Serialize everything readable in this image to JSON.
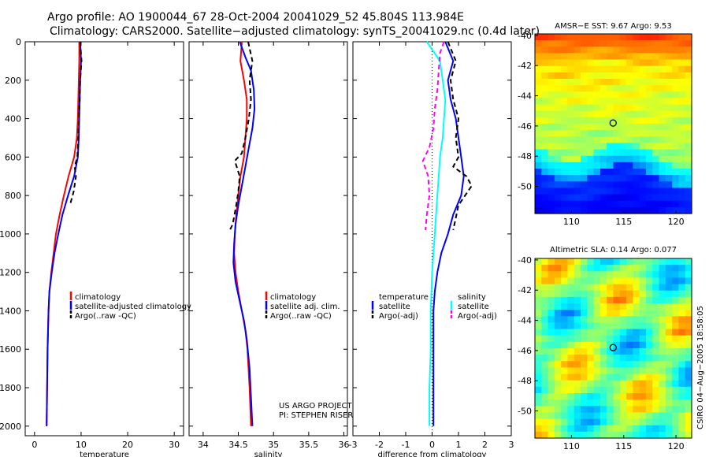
{
  "header": {
    "line1": "Argo profile: AO 1900044_67 28-Oct-2004 20041029_52 45.804S 113.984E",
    "line2": "Climatology: CARS2000. Satellite−adjusted climatology: synTS_20041029.nc (0.4d later)"
  },
  "colors": {
    "clim": "#ff0000",
    "sat": "#0000ff",
    "argo": "#000000",
    "cyan": "#00ffff",
    "magenta": "#ff00ff"
  },
  "chart_data": [
    {
      "type": "line",
      "id": "temperature",
      "xlabel": "temperature",
      "ylabel": "",
      "xlim": [
        -2,
        32
      ],
      "ylim": [
        2050,
        0
      ],
      "xticks": [
        0,
        10,
        20,
        30
      ],
      "yticks": [
        0,
        200,
        400,
        600,
        800,
        1000,
        1200,
        1400,
        1600,
        1800,
        2000
      ],
      "series": [
        {
          "name": "climatology",
          "color": "#ff0000",
          "dash": "",
          "points": [
            [
              9.6,
              0
            ],
            [
              9.6,
              100
            ],
            [
              9.5,
              200
            ],
            [
              9.4,
              300
            ],
            [
              9.3,
              400
            ],
            [
              9.1,
              500
            ],
            [
              8.5,
              600
            ],
            [
              7.3,
              700
            ],
            [
              6.3,
              800
            ],
            [
              5.4,
              900
            ],
            [
              4.6,
              1000
            ],
            [
              4.1,
              1100
            ],
            [
              3.6,
              1200
            ],
            [
              3.2,
              1300
            ],
            [
              3.0,
              1400
            ],
            [
              2.9,
              1500
            ],
            [
              2.8,
              1600
            ],
            [
              2.7,
              1800
            ],
            [
              2.6,
              2000
            ]
          ]
        },
        {
          "name": "satellite-adjusted climatology",
          "color": "#0000ff",
          "dash": "",
          "points": [
            [
              9.8,
              0
            ],
            [
              10.0,
              100
            ],
            [
              9.8,
              200
            ],
            [
              9.7,
              300
            ],
            [
              9.6,
              400
            ],
            [
              9.5,
              500
            ],
            [
              9.3,
              600
            ],
            [
              8.5,
              700
            ],
            [
              7.2,
              800
            ],
            [
              6.0,
              900
            ],
            [
              5.1,
              1000
            ],
            [
              4.3,
              1100
            ],
            [
              3.7,
              1200
            ],
            [
              3.2,
              1300
            ],
            [
              3.0,
              1400
            ],
            [
              2.9,
              1500
            ],
            [
              2.8,
              1600
            ],
            [
              2.7,
              1800
            ],
            [
              2.6,
              2000
            ]
          ]
        },
        {
          "name": "Argo(..raw -QC)",
          "color": "#000000",
          "dash": "6,4",
          "points": [
            [
              9.8,
              0
            ],
            [
              10.1,
              100
            ],
            [
              9.8,
              200
            ],
            [
              9.7,
              300
            ],
            [
              9.5,
              400
            ],
            [
              9.4,
              500
            ],
            [
              9.2,
              600
            ],
            [
              8.6,
              650
            ],
            [
              8.9,
              700
            ],
            [
              8.4,
              780
            ],
            [
              7.6,
              850
            ]
          ]
        }
      ],
      "legend": [
        "climatology",
        "satellite-adjusted climatology",
        "Argo(..raw -QC)"
      ]
    },
    {
      "type": "line",
      "id": "salinity",
      "xlabel": "salinity",
      "ylabel": "",
      "xlim": [
        33.8,
        36.05
      ],
      "ylim": [
        2050,
        0
      ],
      "xticks": [
        34,
        34.5,
        35,
        35.5,
        36
      ],
      "series": [
        {
          "name": "climatology",
          "color": "#ff0000",
          "dash": "",
          "points": [
            [
              34.55,
              0
            ],
            [
              34.53,
              100
            ],
            [
              34.58,
              200
            ],
            [
              34.62,
              300
            ],
            [
              34.62,
              400
            ],
            [
              34.6,
              500
            ],
            [
              34.58,
              600
            ],
            [
              34.53,
              700
            ],
            [
              34.5,
              800
            ],
            [
              34.47,
              900
            ],
            [
              34.45,
              1000
            ],
            [
              34.44,
              1100
            ],
            [
              34.46,
              1200
            ],
            [
              34.5,
              1300
            ],
            [
              34.55,
              1400
            ],
            [
              34.6,
              1500
            ],
            [
              34.63,
              1600
            ],
            [
              34.66,
              1800
            ],
            [
              34.68,
              2000
            ]
          ]
        },
        {
          "name": "satellite adj. clim.",
          "color": "#0000ff",
          "dash": "",
          "points": [
            [
              34.52,
              0
            ],
            [
              34.6,
              80
            ],
            [
              34.68,
              150
            ],
            [
              34.72,
              250
            ],
            [
              34.73,
              350
            ],
            [
              34.7,
              450
            ],
            [
              34.65,
              550
            ],
            [
              34.6,
              650
            ],
            [
              34.55,
              750
            ],
            [
              34.5,
              850
            ],
            [
              34.46,
              950
            ],
            [
              34.44,
              1050
            ],
            [
              34.43,
              1150
            ],
            [
              34.46,
              1250
            ],
            [
              34.52,
              1350
            ],
            [
              34.58,
              1450
            ],
            [
              34.62,
              1550
            ],
            [
              34.66,
              1700
            ],
            [
              34.68,
              1850
            ],
            [
              34.7,
              2000
            ]
          ]
        },
        {
          "name": "Argo(..raw -QC)",
          "color": "#000000",
          "dash": "6,4",
          "points": [
            [
              34.64,
              0
            ],
            [
              34.7,
              100
            ],
            [
              34.66,
              200
            ],
            [
              34.68,
              300
            ],
            [
              34.65,
              400
            ],
            [
              34.6,
              500
            ],
            [
              34.55,
              580
            ],
            [
              34.45,
              620
            ],
            [
              34.52,
              700
            ],
            [
              34.5,
              780
            ],
            [
              34.47,
              850
            ],
            [
              34.42,
              950
            ],
            [
              34.38,
              980
            ]
          ]
        }
      ],
      "legend": [
        "climatology",
        "satellite adj. clim.",
        "Argo(..raw -QC)"
      ]
    },
    {
      "type": "line",
      "id": "difference",
      "xlabel": "difference from climatology",
      "ylabel": "",
      "xlim": [
        -3,
        3
      ],
      "ylim": [
        2050,
        0
      ],
      "xticks": [
        -3,
        -2,
        -1,
        0,
        1,
        2,
        3
      ],
      "series": [
        {
          "name": "temperature satellite",
          "color": "#0000ff",
          "dash": "",
          "points": [
            [
              0.5,
              0
            ],
            [
              0.8,
              100
            ],
            [
              0.6,
              200
            ],
            [
              0.7,
              300
            ],
            [
              0.9,
              400
            ],
            [
              1.0,
              500
            ],
            [
              1.1,
              600
            ],
            [
              1.2,
              700
            ],
            [
              1.1,
              800
            ],
            [
              0.8,
              900
            ],
            [
              0.6,
              1000
            ],
            [
              0.35,
              1100
            ],
            [
              0.2,
              1200
            ],
            [
              0.1,
              1300
            ],
            [
              0.05,
              1400
            ],
            [
              0.05,
              1600
            ],
            [
              0.05,
              2000
            ]
          ]
        },
        {
          "name": "temperature Argo(-adj)",
          "color": "#000000",
          "dash": "6,4",
          "points": [
            [
              0.6,
              0
            ],
            [
              0.9,
              100
            ],
            [
              0.7,
              200
            ],
            [
              0.8,
              300
            ],
            [
              1.0,
              400
            ],
            [
              0.9,
              500
            ],
            [
              1.0,
              600
            ],
            [
              0.8,
              650
            ],
            [
              1.3,
              700
            ],
            [
              1.5,
              750
            ],
            [
              1.0,
              850
            ],
            [
              0.8,
              980
            ]
          ]
        },
        {
          "name": "salinity satellite",
          "color": "#00ffff",
          "dash": "",
          "points": [
            [
              -0.2,
              0
            ],
            [
              0.3,
              100
            ],
            [
              0.4,
              200
            ],
            [
              0.5,
              300
            ],
            [
              0.45,
              400
            ],
            [
              0.4,
              500
            ],
            [
              0.3,
              600
            ],
            [
              0.25,
              700
            ],
            [
              0.2,
              800
            ],
            [
              0.15,
              900
            ],
            [
              0.1,
              1000
            ],
            [
              0.0,
              1200
            ],
            [
              -0.05,
              1400
            ],
            [
              -0.05,
              1600
            ],
            [
              -0.1,
              1800
            ],
            [
              -0.1,
              2000
            ]
          ]
        },
        {
          "name": "salinity Argo(-adj)",
          "color": "#ff00ff",
          "dash": "6,4",
          "points": [
            [
              0.45,
              0
            ],
            [
              0.3,
              60
            ],
            [
              0.25,
              150
            ],
            [
              0.2,
              250
            ],
            [
              0.1,
              350
            ],
            [
              0.05,
              450
            ],
            [
              -0.1,
              550
            ],
            [
              -0.35,
              620
            ],
            [
              -0.15,
              700
            ],
            [
              -0.1,
              800
            ],
            [
              -0.2,
              900
            ],
            [
              -0.25,
              980
            ]
          ]
        }
      ],
      "legend_temperature": {
        "title": "temperature",
        "items": [
          "satellite",
          "Argo(-adj)"
        ]
      },
      "legend_salinity": {
        "title": "salinity",
        "items": [
          "satellite",
          "Argo(-adj)"
        ]
      }
    },
    {
      "type": "heatmap",
      "id": "sst-map",
      "title": "AMSR−E SST: 9.67 Argo: 9.53",
      "xlim": [
        106.5,
        121.5
      ],
      "ylim": [
        -51.8,
        -39.9
      ],
      "xticks": [
        110,
        115,
        120
      ],
      "yticks": [
        -40,
        -42,
        -44,
        -46,
        -48,
        -50
      ],
      "marker": [
        113.984,
        -45.804
      ]
    },
    {
      "type": "heatmap",
      "id": "sla-map",
      "title": "Altimetric SLA: 0.14 Argo: 0.077",
      "xlim": [
        106.5,
        121.5
      ],
      "ylim": [
        -51.8,
        -39.9
      ],
      "xticks": [
        110,
        115,
        120
      ],
      "yticks": [
        -40,
        -42,
        -44,
        -46,
        -48,
        -50
      ],
      "marker": [
        113.984,
        -45.804
      ]
    }
  ],
  "annotations": {
    "project": "US ARGO PROJECT",
    "pi": "PI: STEPHEN RISER",
    "stamp": "CSIRO 04−Aug−2005 18:58:05"
  }
}
